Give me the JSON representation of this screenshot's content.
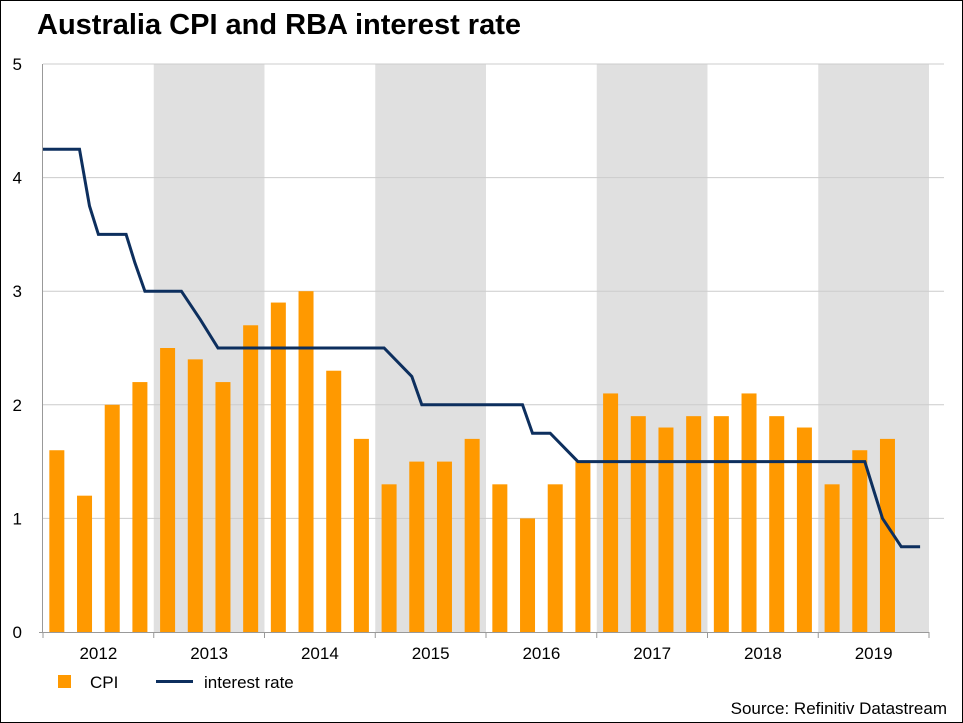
{
  "chart_data": {
    "type": "bar+line",
    "title": "Australia CPI and RBA interest rate",
    "source": "Source: Refinitiv Datastream",
    "xlabel": "",
    "ylabel": "",
    "ylim": [
      0,
      5
    ],
    "yticks": [
      "0",
      "1",
      "2",
      "3",
      "4",
      "5"
    ],
    "year_labels": [
      "2012",
      "2013",
      "2014",
      "2015",
      "2016",
      "2017",
      "2018",
      "2019"
    ],
    "shaded_years": [
      "2013",
      "2015",
      "2017",
      "2019"
    ],
    "grid": true,
    "legend": {
      "placement": "bottom-left",
      "items": [
        {
          "label": "CPI",
          "kind": "bar",
          "color": "#FF9900"
        },
        {
          "label": "interest rate",
          "kind": "line",
          "color": "#0D2F5E"
        }
      ]
    },
    "series": [
      {
        "name": "CPI",
        "type": "bar",
        "color": "#FF9900",
        "periods": [
          "2012 Q1",
          "2012 Q2",
          "2012 Q3",
          "2012 Q4",
          "2013 Q1",
          "2013 Q2",
          "2013 Q3",
          "2013 Q4",
          "2014 Q1",
          "2014 Q2",
          "2014 Q3",
          "2014 Q4",
          "2015 Q1",
          "2015 Q2",
          "2015 Q3",
          "2015 Q4",
          "2016 Q1",
          "2016 Q2",
          "2016 Q3",
          "2016 Q4",
          "2017 Q1",
          "2017 Q2",
          "2017 Q3",
          "2017 Q4",
          "2018 Q1",
          "2018 Q2",
          "2018 Q3",
          "2018 Q4",
          "2019 Q1",
          "2019 Q2",
          "2019 Q3"
        ],
        "values": [
          1.6,
          1.2,
          2.0,
          2.2,
          2.5,
          2.4,
          2.2,
          2.7,
          2.9,
          3.0,
          2.3,
          1.7,
          1.3,
          1.5,
          1.5,
          1.7,
          1.3,
          1.0,
          1.3,
          1.5,
          2.1,
          1.9,
          1.8,
          1.9,
          1.9,
          2.1,
          1.9,
          1.8,
          1.3,
          1.6,
          1.7
        ]
      },
      {
        "name": "interest rate",
        "type": "step-line",
        "color": "#0D2F5E",
        "x_years": [
          2012.0,
          2012.33,
          2012.42,
          2012.5,
          2012.75,
          2012.83,
          2012.92,
          2013.25,
          2013.42,
          2013.58,
          2014.0,
          2014.5,
          2015.08,
          2015.33,
          2015.42,
          2015.75,
          2016.33,
          2016.42,
          2016.58,
          2016.83,
          2017.0,
          2017.5,
          2018.0,
          2018.5,
          2019.0,
          2019.42,
          2019.5,
          2019.58,
          2019.75,
          2019.92
        ],
        "values": [
          4.25,
          4.25,
          3.75,
          3.5,
          3.5,
          3.25,
          3.0,
          3.0,
          2.75,
          2.5,
          2.5,
          2.5,
          2.5,
          2.25,
          2.0,
          2.0,
          2.0,
          1.75,
          1.75,
          1.5,
          1.5,
          1.5,
          1.5,
          1.5,
          1.5,
          1.5,
          1.25,
          1.0,
          0.75,
          0.75
        ]
      }
    ]
  }
}
